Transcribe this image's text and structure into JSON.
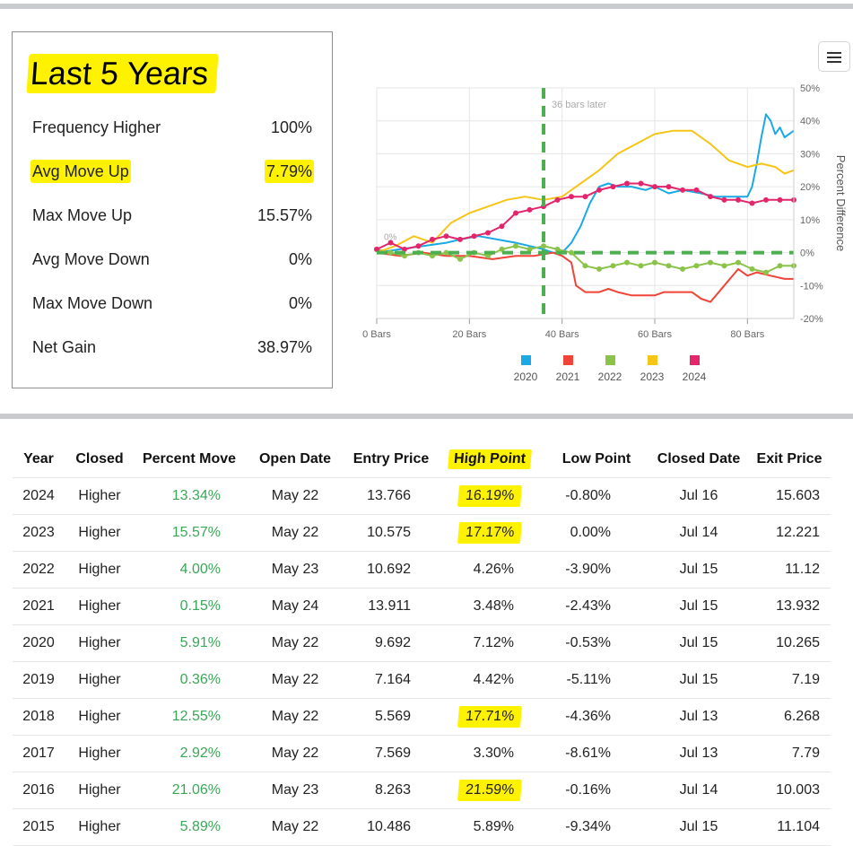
{
  "stats": {
    "title": "Last 5 Years",
    "rows": [
      {
        "label": "Frequency Higher",
        "value": "100%"
      },
      {
        "label": "Avg Move Up",
        "value": "7.79%"
      },
      {
        "label": "Max Move Up",
        "value": "15.57%"
      },
      {
        "label": "Avg Move Down",
        "value": "0%"
      },
      {
        "label": "Max Move Down",
        "value": "0%"
      },
      {
        "label": "Net Gain",
        "value": "38.97%"
      }
    ]
  },
  "menu": {
    "icon": "hamburger-menu-icon"
  },
  "chart_data": {
    "type": "line",
    "x_ticks": [
      "0 Bars",
      "20 Bars",
      "40 Bars",
      "60 Bars",
      "80 Bars"
    ],
    "y_ticks": [
      "50%",
      "40%",
      "30%",
      "20%",
      "10%",
      "0%",
      "-10%",
      "-20%"
    ],
    "ylabel": "Percent Difference",
    "xlim": [
      0,
      90
    ],
    "ylim": [
      -20,
      50
    ],
    "annotation": "36 bars later",
    "zero_label": "0%",
    "vline_x": 36,
    "hline_y": 0,
    "legend_position": "bottom",
    "series": [
      {
        "name": "2020",
        "color": "#1ba9e6",
        "x": [
          0,
          5,
          10,
          15,
          18,
          22,
          26,
          30,
          33,
          36,
          38,
          40,
          42,
          44,
          46,
          48,
          50,
          52,
          55,
          58,
          60,
          63,
          66,
          70,
          73,
          75,
          78,
          80,
          81,
          82,
          83,
          84,
          85,
          86,
          87,
          88,
          89,
          90
        ],
        "y": [
          0,
          1,
          2,
          3,
          4,
          5,
          4,
          3,
          2,
          1,
          0,
          0,
          3,
          8,
          15,
          20,
          21,
          20,
          20,
          19,
          20,
          18,
          19,
          18,
          17,
          17,
          17,
          17,
          20,
          27,
          35,
          42,
          40,
          36,
          38,
          35,
          36,
          37
        ]
      },
      {
        "name": "2021",
        "color": "#f04438",
        "x": [
          0,
          5,
          10,
          15,
          20,
          25,
          30,
          34,
          38,
          40,
          42,
          43,
          45,
          48,
          50,
          52,
          55,
          58,
          60,
          62,
          65,
          68,
          70,
          72,
          75,
          78,
          80,
          82,
          85,
          88,
          90
        ],
        "y": [
          0,
          -1,
          0,
          -1,
          -1,
          -2,
          -1,
          -1,
          0,
          -1,
          -3,
          -10,
          -12,
          -12,
          -11,
          -12,
          -13,
          -13,
          -13,
          -12,
          -12,
          -12,
          -14,
          -15,
          -10,
          -5,
          -7,
          -6,
          -7,
          -8,
          -8
        ]
      },
      {
        "name": "2022",
        "color": "#8bc34a",
        "x": [
          0,
          3,
          6,
          9,
          12,
          15,
          18,
          21,
          24,
          27,
          30,
          33,
          36,
          39,
          42,
          45,
          48,
          51,
          54,
          57,
          60,
          63,
          66,
          69,
          72,
          75,
          78,
          81,
          84,
          87,
          90
        ],
        "y": [
          1,
          0,
          -1,
          0,
          -1,
          0,
          -2,
          0,
          -1,
          1,
          2,
          1,
          2,
          1,
          0,
          -4,
          -5,
          -4,
          -3,
          -4,
          -3,
          -4,
          -5,
          -4,
          -3,
          -4,
          -3,
          -5,
          -6,
          -4,
          -4
        ]
      },
      {
        "name": "2023",
        "color": "#f5c518",
        "x": [
          0,
          4,
          8,
          12,
          16,
          20,
          24,
          28,
          32,
          36,
          40,
          44,
          48,
          52,
          56,
          60,
          64,
          68,
          72,
          76,
          80,
          83,
          86,
          88,
          90
        ],
        "y": [
          0,
          2,
          5,
          3,
          9,
          12,
          14,
          16,
          17,
          16,
          17,
          21,
          25,
          30,
          33,
          36,
          37,
          37,
          33,
          28,
          26,
          27,
          26,
          24,
          25
        ]
      },
      {
        "name": "2024",
        "color": "#e3266c",
        "x": [
          0,
          3,
          6,
          9,
          12,
          15,
          18,
          21,
          24,
          27,
          30,
          33,
          36,
          39,
          42,
          45,
          48,
          51,
          54,
          57,
          60,
          63,
          66,
          69,
          72,
          75,
          78,
          81,
          84,
          87,
          90
        ],
        "y": [
          1,
          3,
          1,
          2,
          4,
          5,
          4,
          5,
          6,
          8,
          12,
          13,
          14,
          16,
          17,
          17,
          19,
          20,
          21,
          21,
          20,
          20,
          19,
          19,
          17,
          16,
          16,
          15,
          16,
          16,
          16
        ]
      }
    ]
  },
  "table": {
    "headers": [
      "Year",
      "Closed",
      "Percent Move",
      "Open Date",
      "Entry Price",
      "High Point",
      "Low Point",
      "Closed Date",
      "Exit Price"
    ],
    "rows": [
      {
        "year": "2024",
        "closed": "Higher",
        "move": "13.34%",
        "open": "May 22",
        "entry": "13.766",
        "high": "16.19%",
        "low": "-0.80%",
        "close_date": "Jul 16",
        "exit": "15.603"
      },
      {
        "year": "2023",
        "closed": "Higher",
        "move": "15.57%",
        "open": "May 22",
        "entry": "10.575",
        "high": "17.17%",
        "low": "0.00%",
        "close_date": "Jul 14",
        "exit": "12.221"
      },
      {
        "year": "2022",
        "closed": "Higher",
        "move": "4.00%",
        "open": "May 23",
        "entry": "10.692",
        "high": "4.26%",
        "low": "-3.90%",
        "close_date": "Jul 15",
        "exit": "11.12"
      },
      {
        "year": "2021",
        "closed": "Higher",
        "move": "0.15%",
        "open": "May 24",
        "entry": "13.911",
        "high": "3.48%",
        "low": "-2.43%",
        "close_date": "Jul 15",
        "exit": "13.932"
      },
      {
        "year": "2020",
        "closed": "Higher",
        "move": "5.91%",
        "open": "May 22",
        "entry": "9.692",
        "high": "7.12%",
        "low": "-0.53%",
        "close_date": "Jul 15",
        "exit": "10.265"
      },
      {
        "year": "2019",
        "closed": "Higher",
        "move": "0.36%",
        "open": "May 22",
        "entry": "7.164",
        "high": "4.42%",
        "low": "-5.11%",
        "close_date": "Jul 15",
        "exit": "7.19"
      },
      {
        "year": "2018",
        "closed": "Higher",
        "move": "12.55%",
        "open": "May 22",
        "entry": "5.569",
        "high": "17.71%",
        "low": "-4.36%",
        "close_date": "Jul 13",
        "exit": "6.268"
      },
      {
        "year": "2017",
        "closed": "Higher",
        "move": "2.92%",
        "open": "May 22",
        "entry": "7.569",
        "high": "3.30%",
        "low": "-8.61%",
        "close_date": "Jul 13",
        "exit": "7.79"
      },
      {
        "year": "2016",
        "closed": "Higher",
        "move": "21.06%",
        "open": "May 23",
        "entry": "8.263",
        "high": "21.59%",
        "low": "-0.16%",
        "close_date": "Jul 14",
        "exit": "10.003"
      },
      {
        "year": "2015",
        "closed": "Higher",
        "move": "5.89%",
        "open": "May 22",
        "entry": "10.486",
        "high": "5.89%",
        "low": "-9.34%",
        "close_date": "Jul 15",
        "exit": "11.104"
      }
    ],
    "highlighted_high_rows": [
      0,
      1,
      6,
      8
    ],
    "highlight_color": "#fff200",
    "positive_color": "#3aa757"
  }
}
